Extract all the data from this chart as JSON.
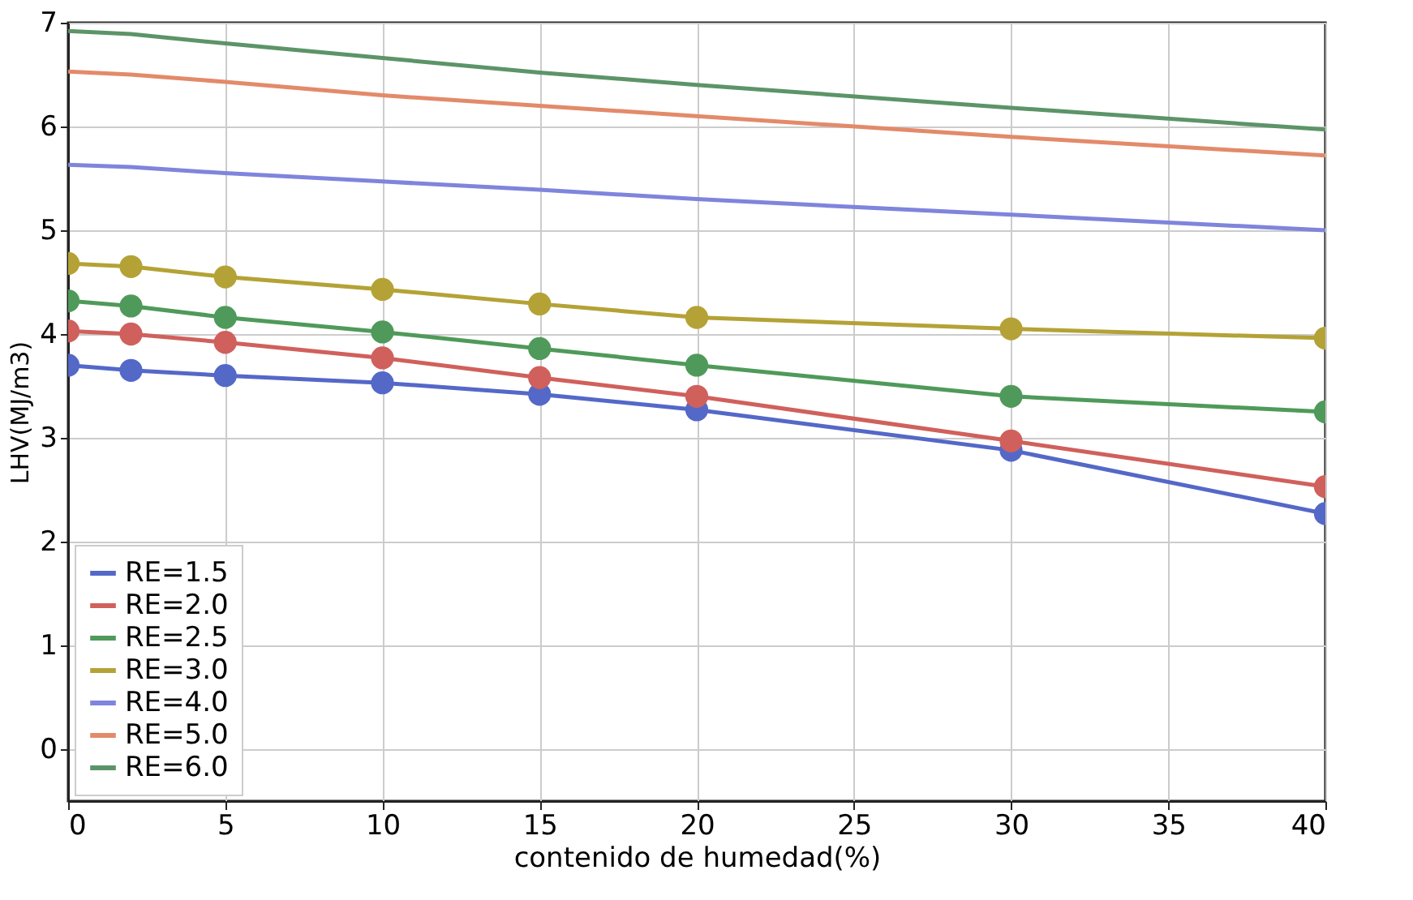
{
  "chart_data": {
    "type": "line",
    "xlabel": "contenido de humedad(%)",
    "ylabel": "LHV(MJ/m3)",
    "x": [
      0,
      2,
      5,
      10,
      15,
      20,
      30,
      40
    ],
    "series": [
      {
        "name": "RE=1.5",
        "color": "#5468c8",
        "marker": "circle",
        "values": [
          3.7,
          3.65,
          3.6,
          3.53,
          3.42,
          3.27,
          2.88,
          2.27
        ]
      },
      {
        "name": "RE=2.0",
        "color": "#d0605c",
        "marker": "circle",
        "values": [
          4.03,
          4.0,
          3.92,
          3.77,
          3.58,
          3.4,
          2.97,
          2.53
        ]
      },
      {
        "name": "RE=2.5",
        "color": "#4f9a5a",
        "marker": "circle",
        "values": [
          4.32,
          4.27,
          4.16,
          4.02,
          3.86,
          3.7,
          3.4,
          3.25
        ]
      },
      {
        "name": "RE=3.0",
        "color": "#b4a236",
        "marker": "circle",
        "values": [
          4.68,
          4.65,
          4.55,
          4.43,
          4.29,
          4.16,
          4.05,
          3.96
        ]
      },
      {
        "name": "RE=4.0",
        "color": "#7f84dc",
        "marker": "none",
        "values": [
          5.63,
          5.61,
          5.55,
          5.47,
          5.39,
          5.3,
          5.15,
          5.0
        ]
      },
      {
        "name": "RE=5.0",
        "color": "#e38a6a",
        "marker": "none",
        "values": [
          6.53,
          6.5,
          6.43,
          6.3,
          6.2,
          6.1,
          5.9,
          5.72
        ]
      },
      {
        "name": "RE=6.0",
        "color": "#5c9468",
        "marker": "none",
        "values": [
          6.92,
          6.89,
          6.8,
          6.66,
          6.52,
          6.4,
          6.18,
          5.97
        ]
      }
    ],
    "xlim": [
      0,
      40
    ],
    "xticks": [
      0,
      5,
      10,
      15,
      20,
      25,
      30,
      35,
      40
    ],
    "ylim": [
      -0.5,
      7
    ],
    "yticks": [
      0,
      1,
      2,
      3,
      4,
      5,
      6,
      7
    ],
    "grid": true,
    "legend": "bottom left"
  }
}
